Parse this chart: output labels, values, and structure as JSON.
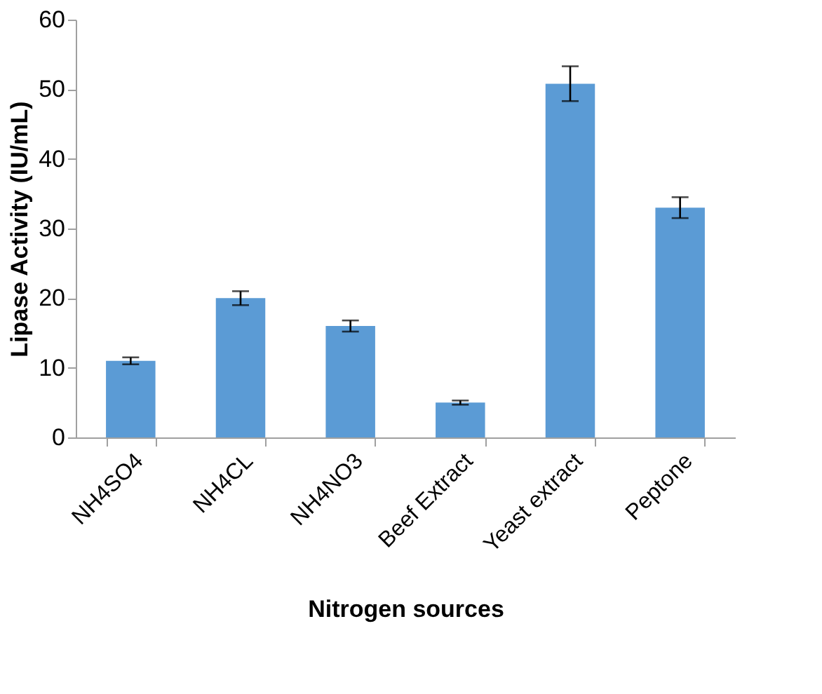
{
  "chart_data": {
    "type": "bar",
    "xlabel": "Nitrogen sources",
    "ylabel": "Lipase Activity (IU/mL)",
    "categories": [
      "NH4SO4",
      "NH4CL",
      "NH4NO3",
      "Beef Extract",
      "Yeast extract",
      "Peptone"
    ],
    "values": [
      11,
      20,
      16,
      5,
      50.8,
      33
    ],
    "errors": [
      0.5,
      1,
      0.8,
      0.3,
      2.5,
      1.5
    ],
    "color": "#5b9bd5",
    "ylim": [
      0,
      60
    ],
    "yticks": [
      0,
      10,
      20,
      30,
      40,
      50,
      60
    ],
    "grid": false
  }
}
